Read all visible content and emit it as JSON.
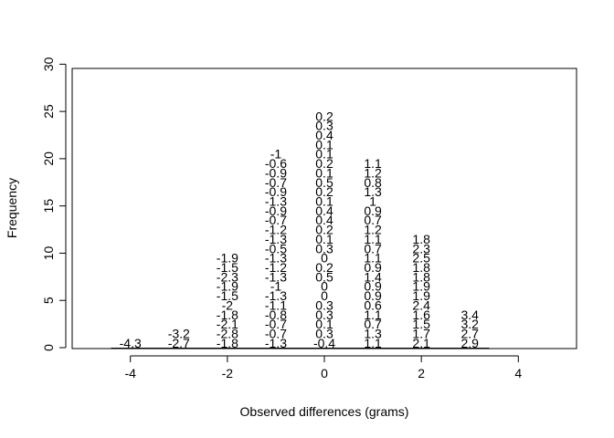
{
  "chart_data": {
    "type": "scatter",
    "title": "",
    "xlabel": "Observed differences (grams)",
    "ylabel": "Frequency",
    "xlim": [
      -5.2,
      5.2
    ],
    "ylim": [
      0,
      31
    ],
    "x_ticks": [
      -4,
      -2,
      0,
      2,
      4
    ],
    "y_ticks": [
      0,
      5,
      10,
      15,
      20,
      25,
      30
    ],
    "grid": false,
    "legend": "none",
    "columns": [
      {
        "x": -4,
        "labels": [
          "-4.3"
        ]
      },
      {
        "x": -3,
        "labels": [
          "-2.7",
          "-3.2"
        ]
      },
      {
        "x": -2,
        "labels": [
          "-1.8",
          "-2.8",
          "-2.1",
          "-1.8",
          "-2",
          "-1.5",
          "-1.9",
          "-2.3",
          "-1.5",
          "-1.9"
        ]
      },
      {
        "x": -1,
        "labels": [
          "-1.3",
          "-0.7",
          "-0.7",
          "-0.8",
          "-1.1",
          "-1.3",
          "-1",
          "-1.3",
          "-1.2",
          "-1.3",
          "-0.5",
          "-1.3",
          "-1.2",
          "-0.7",
          "-0.9",
          "-1.3",
          "-0.9",
          "-0.7",
          "-0.9",
          "-0.6",
          "-1"
        ]
      },
      {
        "x": 0,
        "labels": [
          "-0.4",
          "0.3",
          "0.1",
          "0.3",
          "0.3",
          "0",
          "0",
          "0.5",
          "0.2",
          "0",
          "0.3",
          "0.1",
          "0.2",
          "0.4",
          "0.4",
          "0.1",
          "0.2",
          "0.5",
          "0.1",
          "0.2",
          "0.1",
          "0.1",
          "0.4",
          "0.3",
          "0.2"
        ]
      },
      {
        "x": 1,
        "labels": [
          "1.1",
          "1.3",
          "0.7",
          "1.1",
          "0.6",
          "0.9",
          "0.9",
          "1.4",
          "0.9",
          "1.1",
          "0.7",
          "1.1",
          "1.2",
          "0.7",
          "0.9",
          "1",
          "1.3",
          "0.8",
          "1.2",
          "1.1"
        ]
      },
      {
        "x": 2,
        "labels": [
          "2.1",
          "1.7",
          "1.5",
          "1.6",
          "2.4",
          "1.9",
          "1.9",
          "1.8",
          "1.8",
          "2.5",
          "2.3",
          "1.8"
        ]
      },
      {
        "x": 3,
        "labels": [
          "2.9",
          "2.7",
          "3.2",
          "3.4"
        ]
      }
    ]
  }
}
